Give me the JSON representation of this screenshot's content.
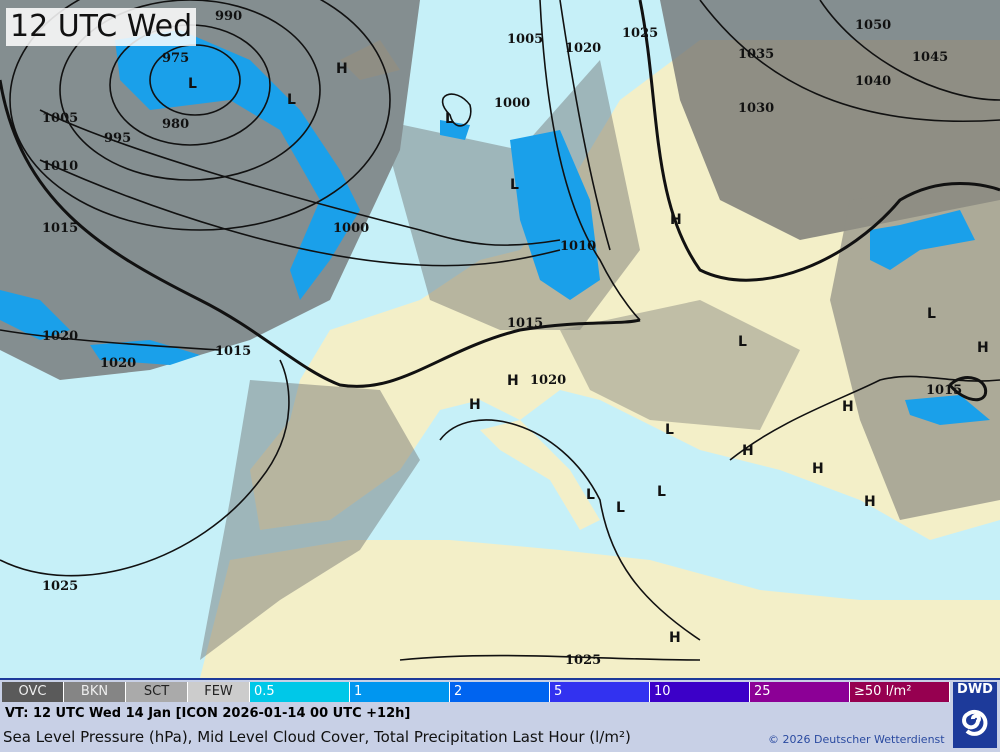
{
  "header": {
    "title": "12 UTC Wed"
  },
  "map": {
    "pressure_labels": [
      "990",
      "975",
      "980",
      "995",
      "1005",
      "1010",
      "1015",
      "1000",
      "1020",
      "1015",
      "1020",
      "1005",
      "1000",
      "1020",
      "1025",
      "1035",
      "1030",
      "1050",
      "1045",
      "1040",
      "1010",
      "1015",
      "1020",
      "1015",
      "1025",
      "1025"
    ],
    "pressure_centers": [
      "L",
      "L",
      "L",
      "H",
      "L",
      "H",
      "H",
      "H",
      "L",
      "L",
      "H",
      "L",
      "L",
      "H",
      "H",
      "H",
      "L",
      "H",
      "L",
      "H"
    ],
    "colors": {
      "sea": "#c6f0f8",
      "land": "#f3efc8",
      "cloud": "#7a7a7a",
      "precip": "#1aa0ea"
    }
  },
  "legend": {
    "cloud_classes": [
      "OVC",
      "BKN",
      "SCT",
      "FEW"
    ],
    "precip_classes": [
      {
        "label": "0.5",
        "color": "#00c8e8"
      },
      {
        "label": "1",
        "color": "#0096f0"
      },
      {
        "label": "2",
        "color": "#0064f0"
      },
      {
        "label": "5",
        "color": "#3232f0"
      },
      {
        "label": "10",
        "color": "#3c00c8"
      },
      {
        "label": "25",
        "color": "#8c0096"
      },
      {
        "label": "≥50 l/m²",
        "color": "#960050"
      }
    ],
    "valid_time": "VT: 12 UTC Wed  14 Jan [ICON 2026-01-14 00 UTC +12h]",
    "description": "Sea Level Pressure (hPa), Mid Level Cloud Cover, Total Precipitation Last Hour (l/m²)",
    "copyright": "© 2026 Deutscher Wetterdienst",
    "logo": "DWD"
  }
}
